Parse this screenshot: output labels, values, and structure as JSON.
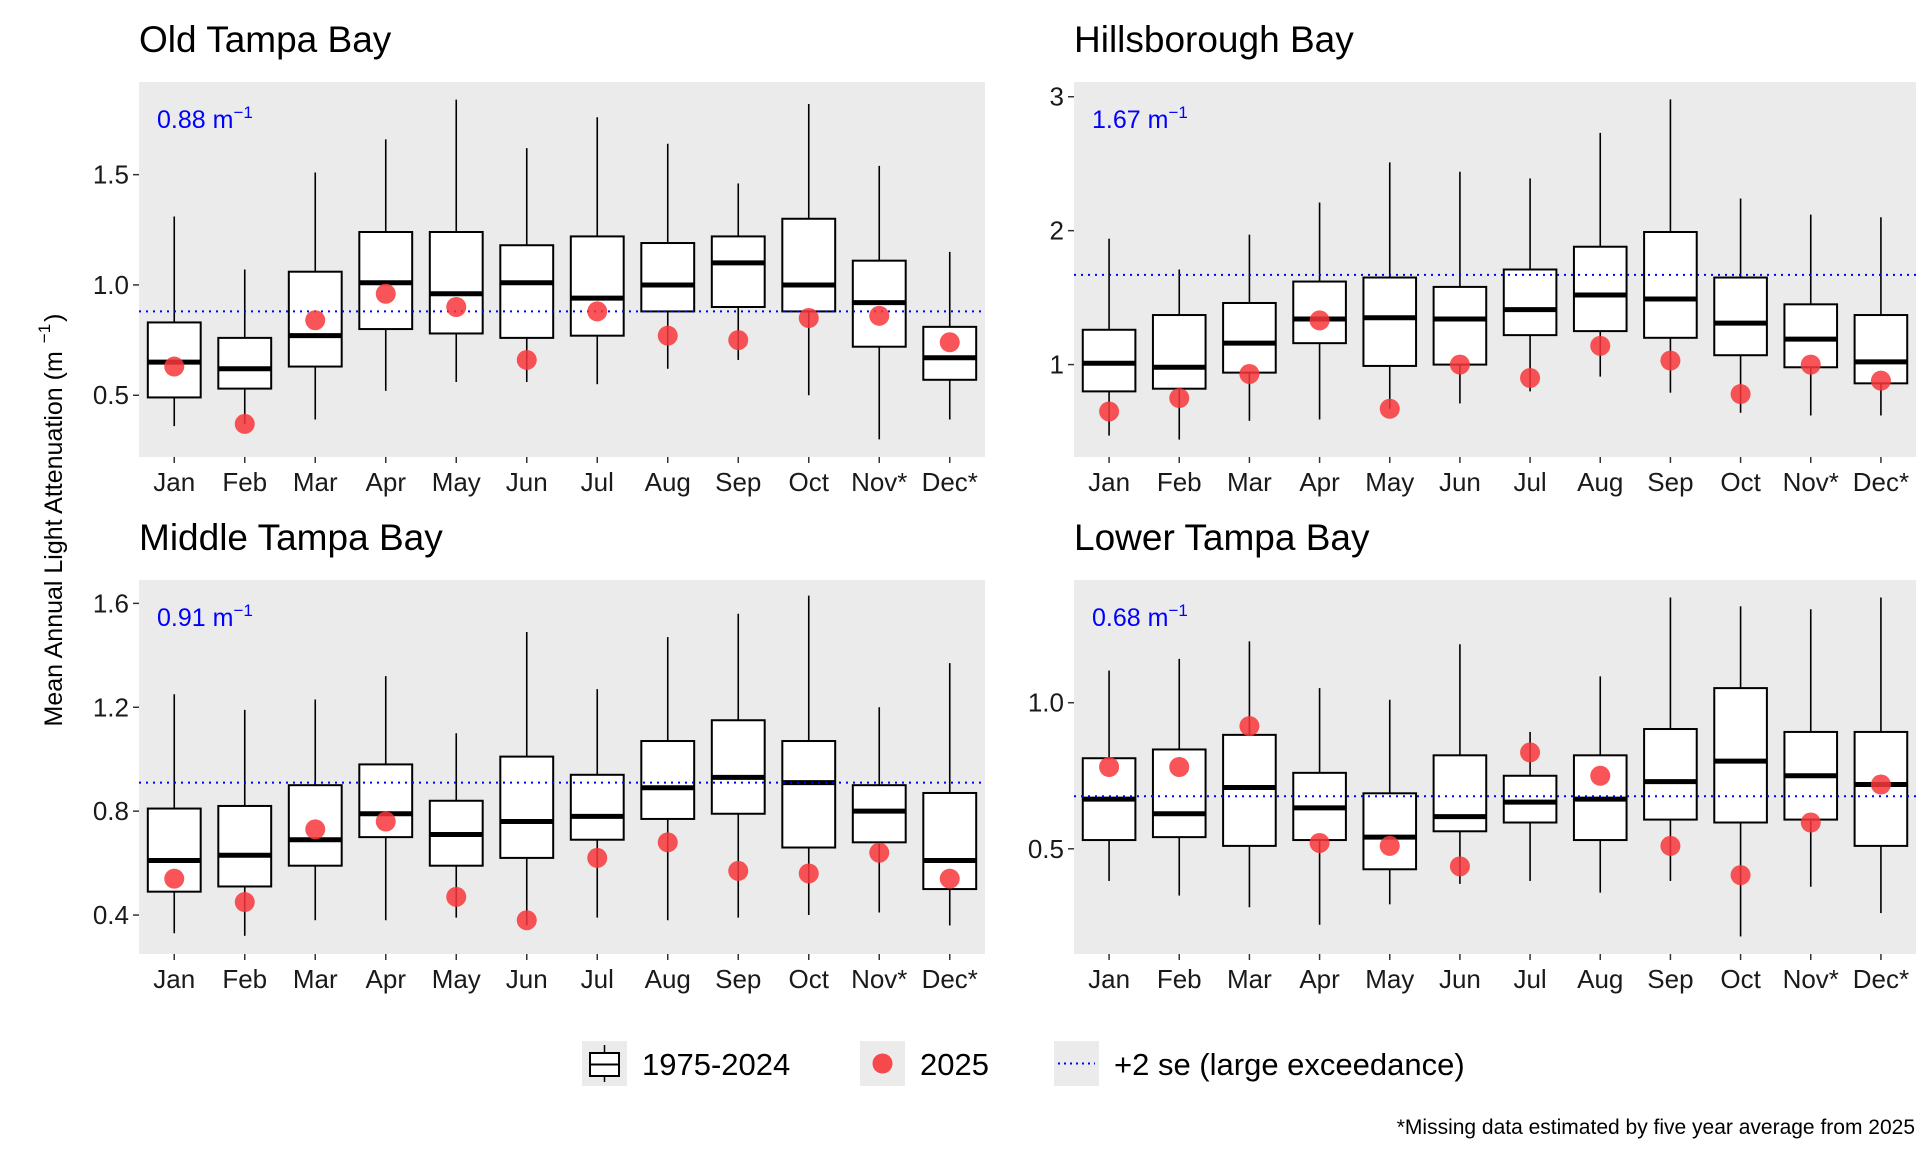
{
  "chart_data": {
    "type": "box",
    "ylabel": "Mean Annual Light Attenuation (m⁻¹)",
    "ylabel_main": "Mean Annual Light Attenuation (m",
    "ylabel_sup": "−1",
    "ylabel_close": ")",
    "categories": [
      "Jan",
      "Feb",
      "Mar",
      "Apr",
      "May",
      "Jun",
      "Jul",
      "Aug",
      "Sep",
      "Oct",
      "Nov*",
      "Dec*"
    ],
    "legend": {
      "placement": "bottom",
      "items": [
        {
          "label": "1975-2024",
          "kind": "box"
        },
        {
          "label": "2025",
          "kind": "point",
          "color": "#f8363a"
        },
        {
          "label": "+2 se (large exceedance)",
          "kind": "dotted-line",
          "color": "#0000ff"
        }
      ]
    },
    "footnote": "*Missing data estimated by five year average from 2025",
    "colors": {
      "panel_bg": "#ebebeb",
      "point": "#f8363a",
      "threshold": "#0000ff",
      "box": "#000000"
    },
    "panels": [
      {
        "title": "Old Tampa Bay",
        "threshold": 0.88,
        "threshold_label": "0.88 m",
        "threshold_unit_sup": "−1",
        "ylim": [
          0.22,
          1.92
        ],
        "yticks": [
          0.5,
          1.0,
          1.5
        ],
        "ytick_labels": [
          "0.5",
          "1.0",
          "1.5"
        ],
        "boxes": [
          {
            "min": 0.36,
            "q1": 0.49,
            "median": 0.65,
            "q3": 0.83,
            "max": 1.31,
            "point": 0.63
          },
          {
            "min": 0.37,
            "q1": 0.53,
            "median": 0.62,
            "q3": 0.76,
            "max": 1.07,
            "point": 0.37
          },
          {
            "min": 0.39,
            "q1": 0.63,
            "median": 0.77,
            "q3": 1.06,
            "max": 1.51,
            "point": 0.84
          },
          {
            "min": 0.52,
            "q1": 0.8,
            "median": 1.01,
            "q3": 1.24,
            "max": 1.66,
            "point": 0.96
          },
          {
            "min": 0.56,
            "q1": 0.78,
            "median": 0.96,
            "q3": 1.24,
            "max": 1.84,
            "point": 0.9
          },
          {
            "min": 0.56,
            "q1": 0.76,
            "median": 1.01,
            "q3": 1.18,
            "max": 1.62,
            "point": 0.66
          },
          {
            "min": 0.55,
            "q1": 0.77,
            "median": 0.94,
            "q3": 1.22,
            "max": 1.76,
            "point": 0.88
          },
          {
            "min": 0.62,
            "q1": 0.88,
            "median": 1.0,
            "q3": 1.19,
            "max": 1.64,
            "point": 0.77
          },
          {
            "min": 0.66,
            "q1": 0.9,
            "median": 1.1,
            "q3": 1.22,
            "max": 1.46,
            "point": 0.75
          },
          {
            "min": 0.5,
            "q1": 0.88,
            "median": 1.0,
            "q3": 1.3,
            "max": 1.82,
            "point": 0.85
          },
          {
            "min": 0.3,
            "q1": 0.72,
            "median": 0.92,
            "q3": 1.11,
            "max": 1.54,
            "point": 0.86
          },
          {
            "min": 0.39,
            "q1": 0.57,
            "median": 0.67,
            "q3": 0.81,
            "max": 1.15,
            "point": 0.74
          }
        ]
      },
      {
        "title": "Hillsborough Bay",
        "threshold": 1.67,
        "threshold_label": "1.67 m",
        "threshold_unit_sup": "−1",
        "ylim": [
          0.31,
          3.11
        ],
        "yticks": [
          1,
          2,
          3
        ],
        "ytick_labels": [
          "1",
          "2",
          "3"
        ],
        "boxes": [
          {
            "min": 0.47,
            "q1": 0.8,
            "median": 1.01,
            "q3": 1.26,
            "max": 1.94,
            "point": 0.65
          },
          {
            "min": 0.44,
            "q1": 0.82,
            "median": 0.98,
            "q3": 1.37,
            "max": 1.71,
            "point": 0.75
          },
          {
            "min": 0.58,
            "q1": 0.94,
            "median": 1.16,
            "q3": 1.46,
            "max": 1.97,
            "point": 0.93
          },
          {
            "min": 0.59,
            "q1": 1.16,
            "median": 1.34,
            "q3": 1.62,
            "max": 2.21,
            "point": 1.33
          },
          {
            "min": 0.67,
            "q1": 0.99,
            "median": 1.35,
            "q3": 1.65,
            "max": 2.51,
            "point": 0.67
          },
          {
            "min": 0.71,
            "q1": 1.0,
            "median": 1.34,
            "q3": 1.58,
            "max": 2.44,
            "point": 1.0
          },
          {
            "min": 0.8,
            "q1": 1.22,
            "median": 1.41,
            "q3": 1.71,
            "max": 2.39,
            "point": 0.9
          },
          {
            "min": 0.91,
            "q1": 1.25,
            "median": 1.52,
            "q3": 1.88,
            "max": 2.73,
            "point": 1.14
          },
          {
            "min": 0.79,
            "q1": 1.2,
            "median": 1.49,
            "q3": 1.99,
            "max": 2.98,
            "point": 1.03
          },
          {
            "min": 0.64,
            "q1": 1.07,
            "median": 1.31,
            "q3": 1.65,
            "max": 2.24,
            "point": 0.78
          },
          {
            "min": 0.62,
            "q1": 0.98,
            "median": 1.19,
            "q3": 1.45,
            "max": 2.12,
            "point": 1.0
          },
          {
            "min": 0.62,
            "q1": 0.86,
            "median": 1.02,
            "q3": 1.37,
            "max": 2.1,
            "point": 0.88
          }
        ]
      },
      {
        "title": "Middle Tampa Bay",
        "threshold": 0.91,
        "threshold_label": "0.91 m",
        "threshold_unit_sup": "−1",
        "ylim": [
          0.25,
          1.69
        ],
        "yticks": [
          0.4,
          0.8,
          1.2,
          1.6
        ],
        "ytick_labels": [
          "0.4",
          "0.8",
          "1.2",
          "1.6"
        ],
        "boxes": [
          {
            "min": 0.33,
            "q1": 0.49,
            "median": 0.61,
            "q3": 0.81,
            "max": 1.25,
            "point": 0.54
          },
          {
            "min": 0.32,
            "q1": 0.51,
            "median": 0.63,
            "q3": 0.82,
            "max": 1.19,
            "point": 0.45
          },
          {
            "min": 0.38,
            "q1": 0.59,
            "median": 0.69,
            "q3": 0.9,
            "max": 1.23,
            "point": 0.73
          },
          {
            "min": 0.38,
            "q1": 0.7,
            "median": 0.79,
            "q3": 0.98,
            "max": 1.32,
            "point": 0.76
          },
          {
            "min": 0.39,
            "q1": 0.59,
            "median": 0.71,
            "q3": 0.84,
            "max": 1.1,
            "point": 0.47
          },
          {
            "min": 0.36,
            "q1": 0.62,
            "median": 0.76,
            "q3": 1.01,
            "max": 1.49,
            "point": 0.38
          },
          {
            "min": 0.39,
            "q1": 0.69,
            "median": 0.78,
            "q3": 0.94,
            "max": 1.27,
            "point": 0.62
          },
          {
            "min": 0.38,
            "q1": 0.77,
            "median": 0.89,
            "q3": 1.07,
            "max": 1.47,
            "point": 0.68
          },
          {
            "min": 0.39,
            "q1": 0.79,
            "median": 0.93,
            "q3": 1.15,
            "max": 1.56,
            "point": 0.57
          },
          {
            "min": 0.4,
            "q1": 0.66,
            "median": 0.91,
            "q3": 1.07,
            "max": 1.63,
            "point": 0.56
          },
          {
            "min": 0.41,
            "q1": 0.68,
            "median": 0.8,
            "q3": 0.9,
            "max": 1.2,
            "point": 0.64
          },
          {
            "min": 0.36,
            "q1": 0.5,
            "median": 0.61,
            "q3": 0.87,
            "max": 1.37,
            "point": 0.54
          }
        ]
      },
      {
        "title": "Lower Tampa Bay",
        "threshold": 0.68,
        "threshold_label": "0.68 m",
        "threshold_unit_sup": "−1",
        "ylim": [
          0.14,
          1.42
        ],
        "yticks": [
          0.5,
          1.0
        ],
        "ytick_labels": [
          "0.5",
          "1.0"
        ],
        "boxes": [
          {
            "min": 0.39,
            "q1": 0.53,
            "median": 0.67,
            "q3": 0.81,
            "max": 1.11,
            "point": 0.78
          },
          {
            "min": 0.34,
            "q1": 0.54,
            "median": 0.62,
            "q3": 0.84,
            "max": 1.15,
            "point": 0.78
          },
          {
            "min": 0.3,
            "q1": 0.51,
            "median": 0.71,
            "q3": 0.89,
            "max": 1.21,
            "point": 0.92
          },
          {
            "min": 0.24,
            "q1": 0.53,
            "median": 0.64,
            "q3": 0.76,
            "max": 1.05,
            "point": 0.52
          },
          {
            "min": 0.31,
            "q1": 0.43,
            "median": 0.54,
            "q3": 0.69,
            "max": 1.01,
            "point": 0.51
          },
          {
            "min": 0.38,
            "q1": 0.56,
            "median": 0.61,
            "q3": 0.82,
            "max": 1.2,
            "point": 0.44
          },
          {
            "min": 0.39,
            "q1": 0.59,
            "median": 0.66,
            "q3": 0.75,
            "max": 0.9,
            "point": 0.83
          },
          {
            "min": 0.35,
            "q1": 0.53,
            "median": 0.67,
            "q3": 0.82,
            "max": 1.09,
            "point": 0.75
          },
          {
            "min": 0.39,
            "q1": 0.6,
            "median": 0.73,
            "q3": 0.91,
            "max": 1.36,
            "point": 0.51
          },
          {
            "min": 0.2,
            "q1": 0.59,
            "median": 0.8,
            "q3": 1.05,
            "max": 1.33,
            "point": 0.41
          },
          {
            "min": 0.37,
            "q1": 0.6,
            "median": 0.75,
            "q3": 0.9,
            "max": 1.32,
            "point": 0.59
          },
          {
            "min": 0.28,
            "q1": 0.51,
            "median": 0.72,
            "q3": 0.9,
            "max": 1.36,
            "point": 0.72
          }
        ]
      }
    ]
  }
}
